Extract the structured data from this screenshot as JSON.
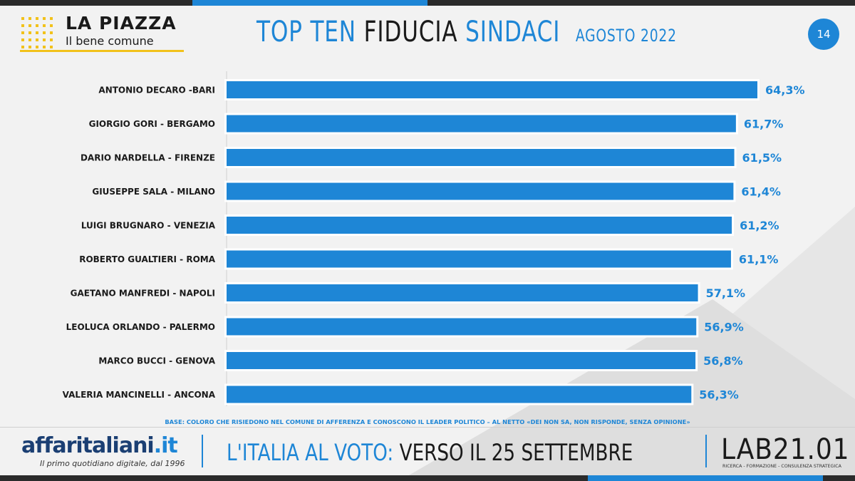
{
  "header": {
    "logo_title": "LA PIAZZA",
    "logo_subtitle": "Il bene comune",
    "title_part1": "TOP TEN",
    "title_part2": "FIDUCIA",
    "title_part3": "SINDACI",
    "title_date": "AGOSTO 2022",
    "page_number": "14"
  },
  "chart_data": {
    "type": "bar",
    "orientation": "horizontal",
    "title": "TOP TEN FIDUCIA SINDACI AGOSTO 2022",
    "categories": [
      "ANTONIO DECARO -BARI",
      "GIORGIO GORI - BERGAMO",
      "DARIO NARDELLA - FIRENZE",
      "GIUSEPPE SALA - MILANO",
      "LUIGI BRUGNARO - VENEZIA",
      "ROBERTO GUALTIERI - ROMA",
      "GAETANO MANFREDI - NAPOLI",
      "LEOLUCA ORLANDO - PALERMO",
      "MARCO BUCCI - GENOVA",
      "VALERIA MANCINELLI - ANCONA"
    ],
    "values": [
      64.3,
      61.7,
      61.5,
      61.4,
      61.2,
      61.1,
      57.1,
      56.9,
      56.8,
      56.3
    ],
    "value_labels": [
      "64,3%",
      "61,7%",
      "61,5%",
      "61,4%",
      "61,2%",
      "61,1%",
      "57,1%",
      "56,9%",
      "56,8%",
      "56,3%"
    ],
    "xlim": [
      0,
      65
    ],
    "bar_color": "#1e86d6",
    "grid": false,
    "legend": "none"
  },
  "base_note": "BASE: COLORO CHE RISIEDONO NEL COMUNE DI AFFERENZA E CONOSCONO IL LEADER POLITICO – AL NETTO «DEI NON SA, NON RISPONDE, SENZA OPINIONE»",
  "footer": {
    "brand_name": "affaritaliani",
    "brand_domain": ".it",
    "brand_tagline": "Il primo quotidiano digitale, dal 1996",
    "slogan_part1": "L'ITALIA AL VOTO:",
    "slogan_part2": "VERSO IL 25 SETTEMBRE",
    "lab_name": "LAB21.01",
    "lab_tagline": "RICERCA - FORMAZIONE - CONSULENZA STRATEGICA"
  },
  "colors": {
    "accent_blue": "#1e86d6",
    "accent_yellow": "#f2c21b",
    "dark": "#1a1a1a"
  }
}
